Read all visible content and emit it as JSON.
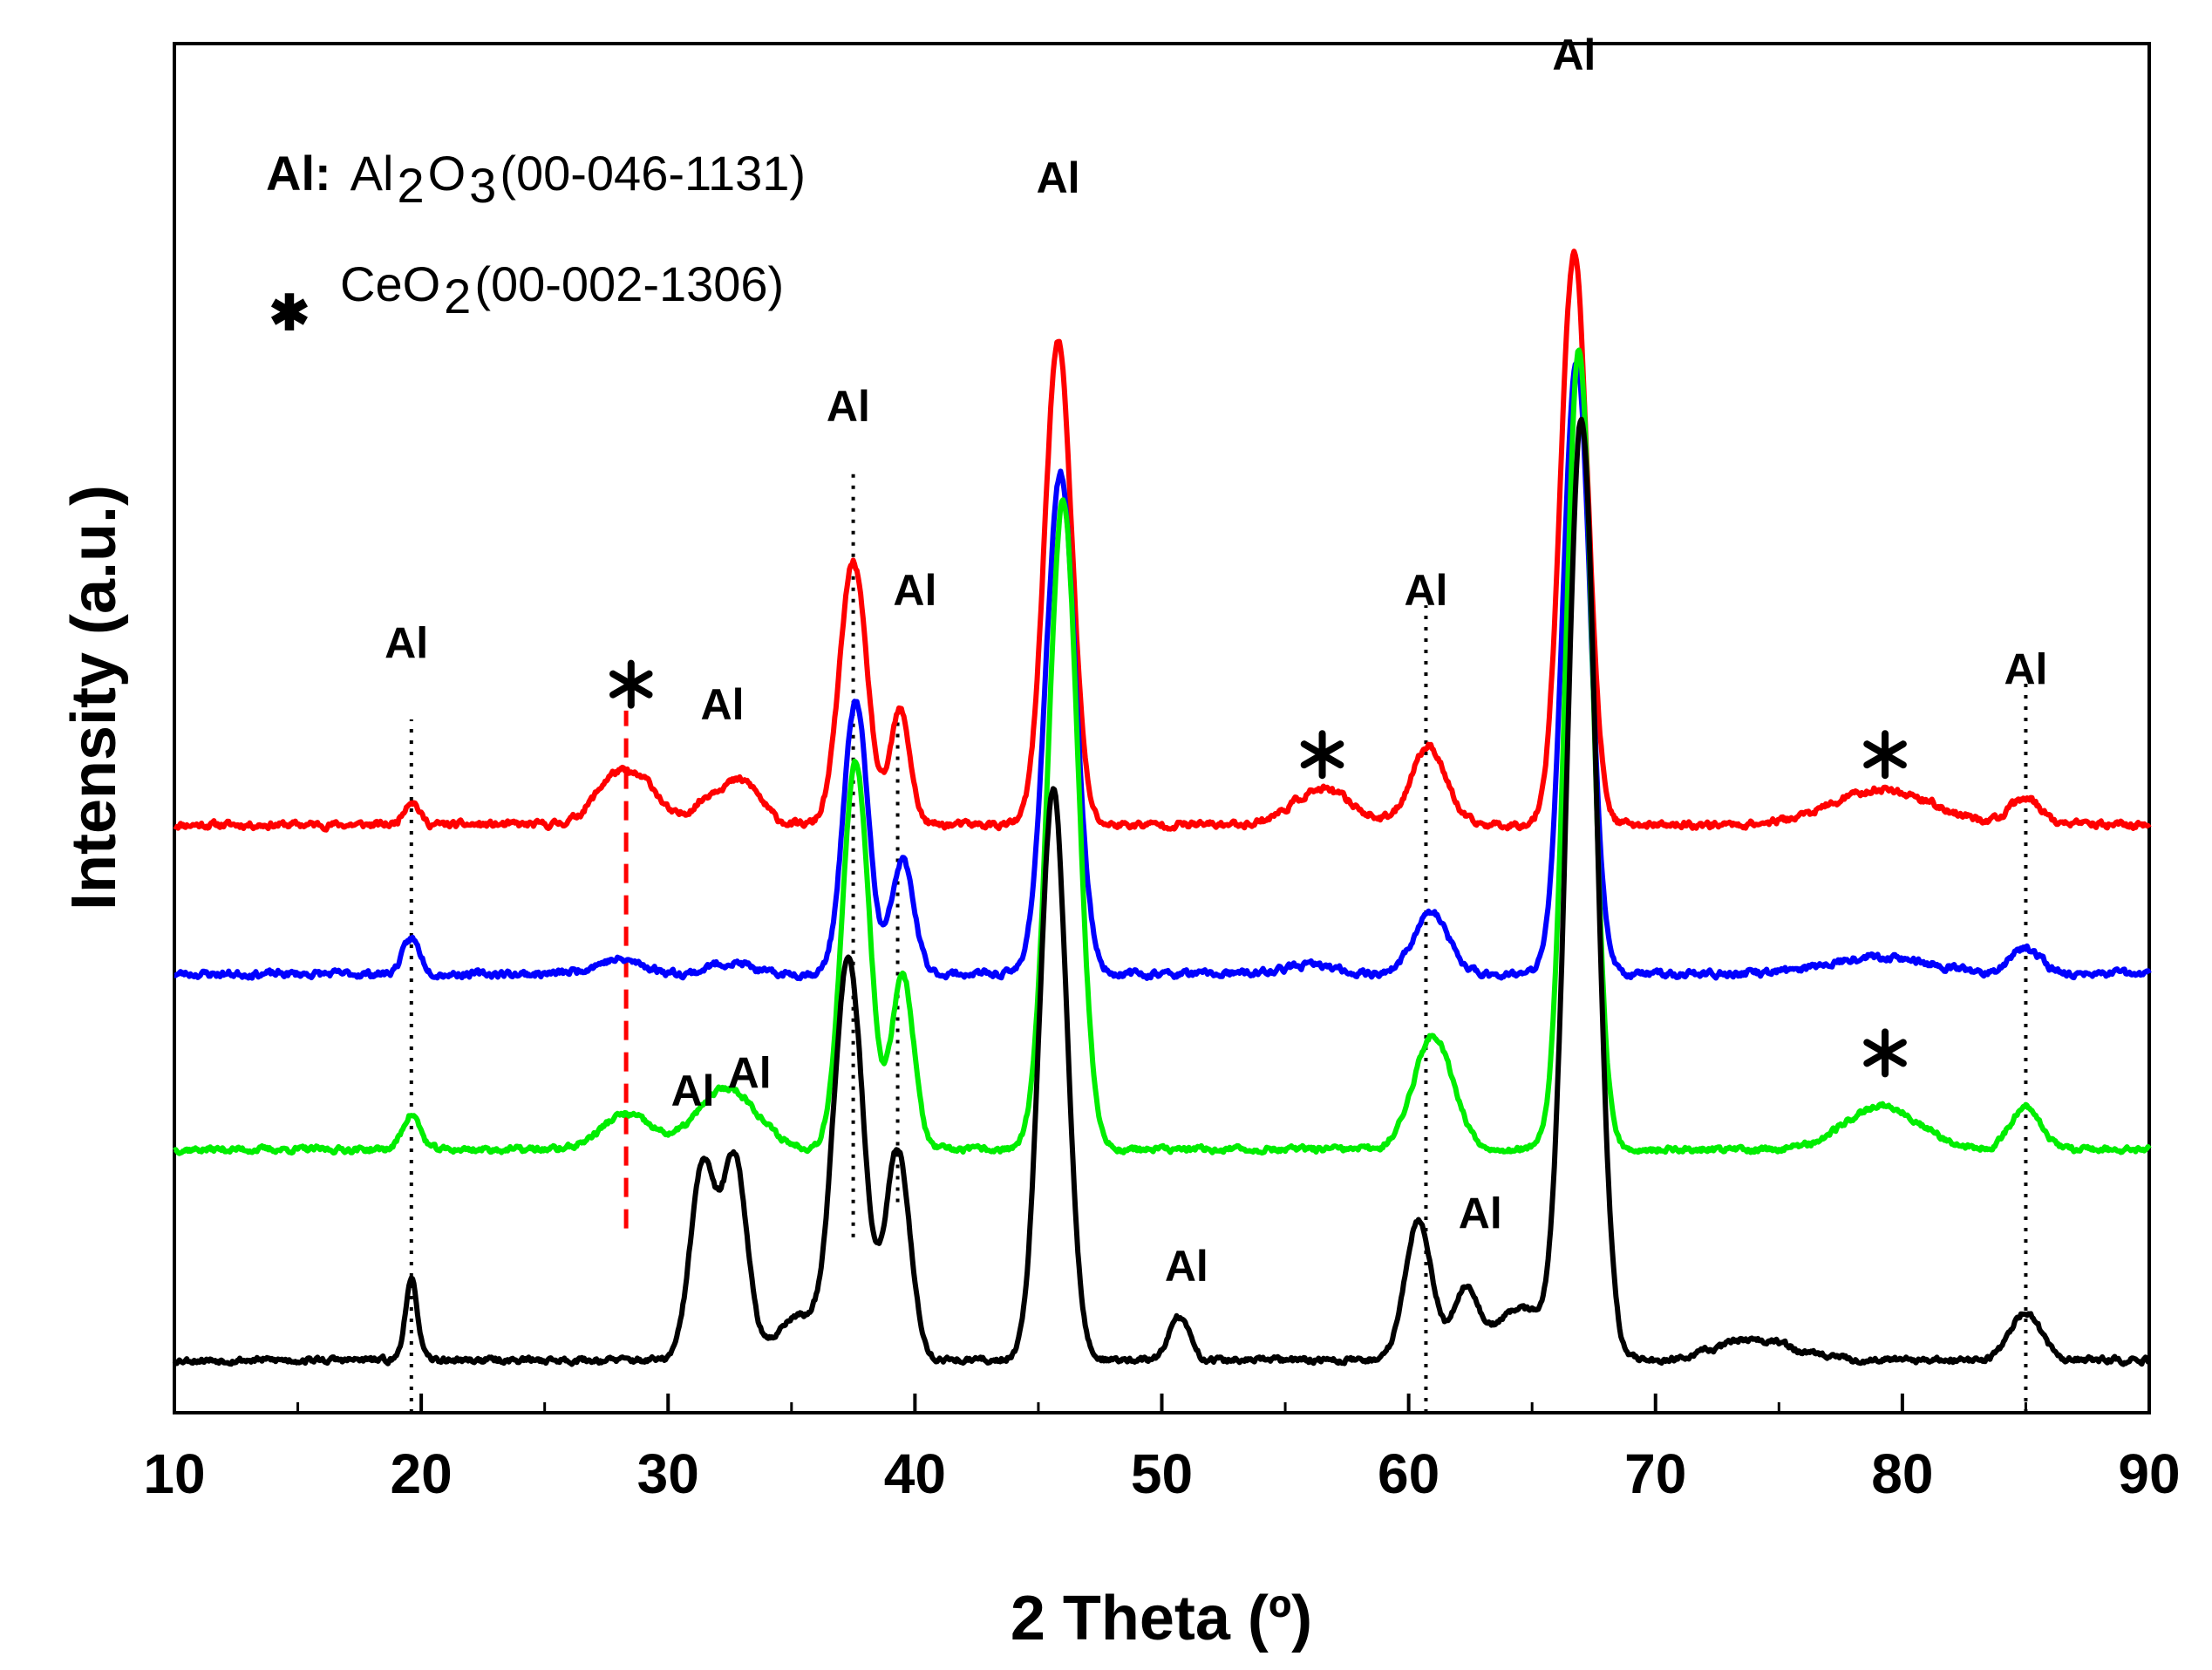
{
  "chart_data": {
    "type": "line",
    "title": "",
    "xlabel": "2 Theta (º)",
    "ylabel": "Intensity (a.u.)",
    "xlim": [
      10,
      90
    ],
    "x_ticks": [
      "10",
      "20",
      "30",
      "40",
      "50",
      "60",
      "70",
      "80",
      "90"
    ],
    "y_ticks": [],
    "grid": false,
    "legend": [
      {
        "key": "Al:",
        "text": "Al2O3 (00-046-1131)",
        "parts": [
          "Al",
          "2",
          "O",
          "3",
          " (00-046-1131)"
        ]
      },
      {
        "key": "✱",
        "text": "CeO2 (00-002-1306)",
        "parts": [
          "CeO",
          "2",
          " (00-002-1306)"
        ]
      }
    ],
    "series": [
      {
        "name": "red",
        "color": "#ff0000",
        "baseline": 3.35,
        "noise": 0.035,
        "seed": 11,
        "peaks": [
          [
            19.6,
            0.14,
            0.3
          ],
          [
            28.0,
            0.3,
            0.9
          ],
          [
            29.3,
            0.12,
            0.5
          ],
          [
            32.2,
            0.2,
            1.0
          ],
          [
            33.3,
            0.12,
            0.6
          ],
          [
            37.5,
            1.5,
            0.55
          ],
          [
            39.4,
            0.65,
            0.4
          ],
          [
            45.8,
            2.75,
            0.55
          ],
          [
            56.5,
            0.2,
            1.2
          ],
          [
            60.8,
            0.45,
            0.7
          ],
          [
            66.7,
            3.25,
            0.55
          ],
          [
            79.2,
            0.2,
            2.0
          ],
          [
            85.0,
            0.15,
            0.6
          ]
        ]
      },
      {
        "name": "blue",
        "color": "#0000ff",
        "baseline": 2.5,
        "noise": 0.035,
        "seed": 23,
        "peaks": [
          [
            19.6,
            0.2,
            0.35
          ],
          [
            28.0,
            0.08,
            1.0
          ],
          [
            32.0,
            0.05,
            0.5
          ],
          [
            33.0,
            0.05,
            0.5
          ],
          [
            37.6,
            1.55,
            0.5
          ],
          [
            39.5,
            0.65,
            0.45
          ],
          [
            45.9,
            2.85,
            0.6
          ],
          [
            56.0,
            0.05,
            1.0
          ],
          [
            60.9,
            0.35,
            0.7
          ],
          [
            66.8,
            3.5,
            0.55
          ],
          [
            79.0,
            0.1,
            2.0
          ],
          [
            85.0,
            0.15,
            0.6
          ]
        ]
      },
      {
        "name": "green",
        "color": "#00ee00",
        "baseline": 1.5,
        "noise": 0.03,
        "seed": 37,
        "peaks": [
          [
            19.6,
            0.2,
            0.35
          ],
          [
            28.3,
            0.2,
            1.0
          ],
          [
            32.4,
            0.35,
            1.2
          ],
          [
            37.6,
            2.2,
            0.55
          ],
          [
            39.5,
            1.0,
            0.45
          ],
          [
            46.0,
            3.7,
            0.6
          ],
          [
            61.0,
            0.65,
            0.8
          ],
          [
            66.9,
            4.55,
            0.55
          ],
          [
            79.2,
            0.25,
            1.5
          ],
          [
            85.0,
            0.25,
            0.6
          ]
        ]
      },
      {
        "name": "black",
        "color": "#000000",
        "baseline": 0.3,
        "noise": 0.03,
        "seed": 53,
        "peaks": [
          [
            19.6,
            0.45,
            0.25
          ],
          [
            31.4,
            1.1,
            0.5
          ],
          [
            32.7,
            1.15,
            0.5
          ],
          [
            35.2,
            0.25,
            0.8
          ],
          [
            37.3,
            2.3,
            0.6
          ],
          [
            39.3,
            1.2,
            0.5
          ],
          [
            45.6,
            3.25,
            0.55
          ],
          [
            50.7,
            0.25,
            0.4
          ],
          [
            60.4,
            0.8,
            0.55
          ],
          [
            62.3,
            0.4,
            0.5
          ],
          [
            64.5,
            0.3,
            1.0
          ],
          [
            67.0,
            5.35,
            0.6
          ],
          [
            74.0,
            0.12,
            1.5
          ],
          [
            85.0,
            0.28,
            0.6
          ]
        ]
      }
    ],
    "y_range": [
      0,
      7.8
    ],
    "reference_lines": [
      {
        "x": 19.6,
        "y_from": 0.0,
        "y_to": 3.95,
        "color": "#000000",
        "style": "dotted"
      },
      {
        "x": 37.5,
        "y_from": 1.0,
        "y_to": 5.35,
        "color": "#000000",
        "style": "dotted"
      },
      {
        "x": 39.3,
        "y_from": 1.2,
        "y_to": 3.95,
        "color": "#000000",
        "style": "dotted"
      },
      {
        "x": 60.7,
        "y_from": 0.0,
        "y_to": 4.6,
        "color": "#000000",
        "style": "dotted"
      },
      {
        "x": 85.0,
        "y_from": 0.0,
        "y_to": 4.25,
        "color": "#000000",
        "style": "dotted"
      },
      {
        "x": 28.3,
        "y_from": 1.05,
        "y_to": 4.0,
        "color": "#ff0000",
        "style": "dashed"
      }
    ],
    "annotations": [
      {
        "text": "Al",
        "x": 19.4,
        "y": 4.3
      },
      {
        "text": "Al",
        "x": 32.2,
        "y": 3.95
      },
      {
        "text": "Al",
        "x": 37.3,
        "y": 5.65
      },
      {
        "text": "Al",
        "x": 40.0,
        "y": 4.6
      },
      {
        "text": "Al",
        "x": 45.8,
        "y": 6.95
      },
      {
        "text": "Al",
        "x": 60.7,
        "y": 4.6
      },
      {
        "text": "Al",
        "x": 66.7,
        "y": 7.65
      },
      {
        "text": "Al",
        "x": 85.0,
        "y": 4.15
      },
      {
        "text": "Al",
        "x": 31.0,
        "y": 1.75
      },
      {
        "text": "Al",
        "x": 33.3,
        "y": 1.85
      },
      {
        "text": "Al",
        "x": 51.0,
        "y": 0.75
      },
      {
        "text": "Al",
        "x": 62.9,
        "y": 1.05
      }
    ],
    "star_markers": [
      {
        "x": 28.5,
        "y": 4.15
      },
      {
        "x": 56.5,
        "y": 3.75
      },
      {
        "x": 79.3,
        "y": 3.75
      },
      {
        "x": 79.3,
        "y": 2.05
      }
    ]
  }
}
